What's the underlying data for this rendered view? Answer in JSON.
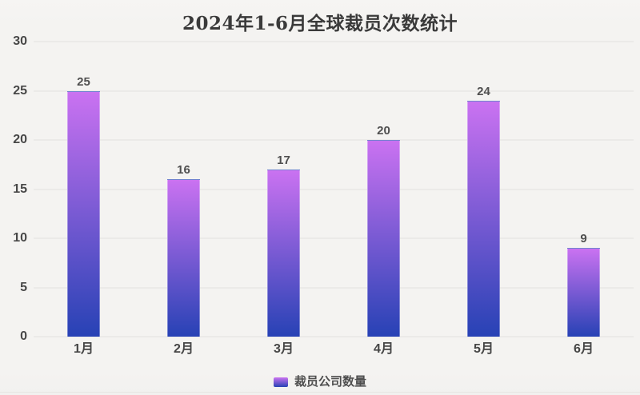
{
  "chart": {
    "title": "2024年1-6月全球裁员次数统计",
    "legend_label": "裁员公司数量"
  },
  "chart_data": {
    "type": "bar",
    "title": "2024年1-6月全球裁员次数统计",
    "categories": [
      "1月",
      "2月",
      "3月",
      "4月",
      "5月",
      "6月"
    ],
    "series": [
      {
        "name": "裁员公司数量",
        "values": [
          25,
          16,
          17,
          20,
          24,
          9
        ]
      }
    ],
    "xlabel": "",
    "ylabel": "",
    "ylim": [
      0,
      30
    ],
    "ytick_step": 5,
    "yticks": [
      0,
      5,
      10,
      15,
      20,
      25,
      30
    ],
    "grid": true,
    "legend_position": "bottom",
    "value_labels": true,
    "colors": {
      "bar_gradient_top": "#ca72f1",
      "bar_gradient_bottom": "#2742b5",
      "background": "#f4f3f1",
      "gridline": "#e2e1de",
      "title_text": "#3a3a3a",
      "tick_text": "#474747"
    }
  }
}
